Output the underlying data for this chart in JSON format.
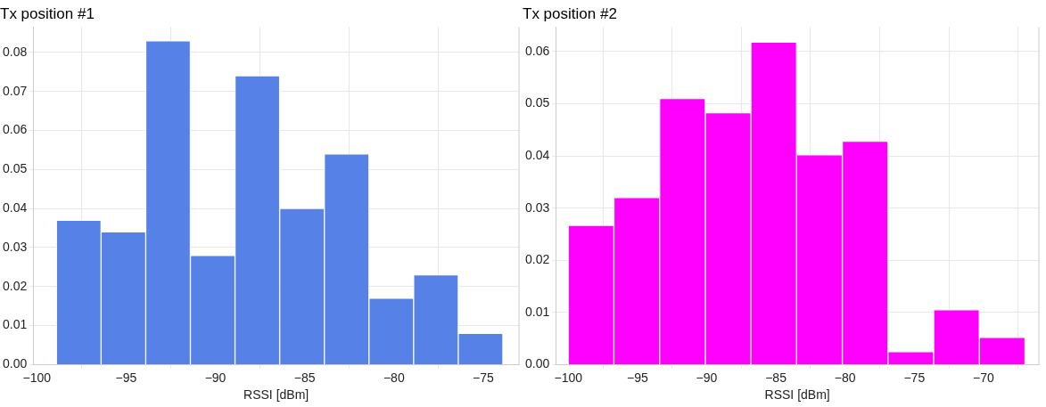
{
  "chart_data": [
    {
      "type": "histogram",
      "title": "Tx position #1",
      "xlabel": "RSSI [dBm]",
      "color": "#5682e8",
      "bins": [
        -98.9,
        -96.4,
        -93.9,
        -91.4,
        -88.9,
        -86.4,
        -83.9,
        -81.4,
        -78.9,
        -76.4,
        -73.9
      ],
      "values": [
        0.037,
        0.034,
        0.083,
        0.028,
        0.074,
        0.04,
        0.054,
        0.017,
        0.023,
        0.008
      ],
      "xlim": [
        -100.2,
        -73
      ],
      "ylim": [
        0,
        0.0865
      ],
      "xticks": [
        {
          "value": -100,
          "label": "−100"
        },
        {
          "value": -95,
          "label": "−95"
        },
        {
          "value": -90,
          "label": "−90"
        },
        {
          "value": -85,
          "label": "−85"
        },
        {
          "value": -80,
          "label": "−80"
        },
        {
          "value": -75,
          "label": "−75"
        }
      ],
      "yticks": [
        {
          "value": 0,
          "label": "0.00"
        },
        {
          "value": 0.01,
          "label": "0.01"
        },
        {
          "value": 0.02,
          "label": "0.02"
        },
        {
          "value": 0.03,
          "label": "0.03"
        },
        {
          "value": 0.04,
          "label": "0.04"
        },
        {
          "value": 0.05,
          "label": "0.05"
        },
        {
          "value": 0.06,
          "label": "0.06"
        },
        {
          "value": 0.07,
          "label": "0.07"
        },
        {
          "value": 0.08,
          "label": "0.08"
        }
      ],
      "grid": true
    },
    {
      "type": "histogram",
      "title": "Tx position #2",
      "xlabel": "RSSI [dBm]",
      "color": "#ff00ff",
      "bins": [
        -100,
        -96.7,
        -93.4,
        -90.1,
        -86.8,
        -83.5,
        -80.2,
        -76.9,
        -73.6,
        -70.3,
        -67
      ],
      "values": [
        0.0267,
        0.032,
        0.051,
        0.0483,
        0.0618,
        0.0402,
        0.0428,
        0.0025,
        0.0105,
        0.0052
      ],
      "xlim": [
        -100.9,
        -66
      ],
      "ylim": [
        0,
        0.0647
      ],
      "xticks": [
        {
          "value": -100,
          "label": "−100"
        },
        {
          "value": -95,
          "label": "−95"
        },
        {
          "value": -90,
          "label": "−90"
        },
        {
          "value": -85,
          "label": "−85"
        },
        {
          "value": -80,
          "label": "−80"
        },
        {
          "value": -75,
          "label": "−75"
        },
        {
          "value": -70,
          "label": "−70"
        }
      ],
      "yticks": [
        {
          "value": 0,
          "label": "0.00"
        },
        {
          "value": 0.01,
          "label": "0.01"
        },
        {
          "value": 0.02,
          "label": "0.02"
        },
        {
          "value": 0.03,
          "label": "0.03"
        },
        {
          "value": 0.04,
          "label": "0.04"
        },
        {
          "value": 0.05,
          "label": "0.05"
        },
        {
          "value": 0.06,
          "label": "0.06"
        }
      ],
      "grid": true
    }
  ]
}
